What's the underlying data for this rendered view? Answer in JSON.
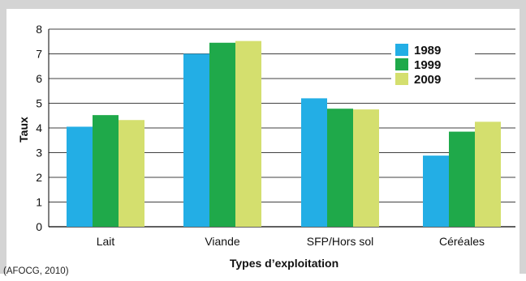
{
  "chart_data": {
    "type": "bar",
    "categories": [
      "Lait",
      "Viande",
      "SFP/Hors sol",
      "Céréales"
    ],
    "series": [
      {
        "name": "1989",
        "values": [
          4.05,
          7.0,
          5.2,
          2.88
        ],
        "color": "#23aee5"
      },
      {
        "name": "1999",
        "values": [
          4.52,
          7.45,
          4.78,
          3.85
        ],
        "color": "#1fa94a"
      },
      {
        "name": "2009",
        "values": [
          4.32,
          7.52,
          4.75,
          4.25
        ],
        "color": "#d4df6e"
      }
    ],
    "xlabel": "Types d’exploitation",
    "ylabel": "Taux",
    "ylim": [
      0,
      8
    ],
    "yticks": [
      "0",
      "1",
      "2",
      "3",
      "4",
      "5",
      "6",
      "7",
      "8"
    ],
    "grid": true,
    "legend_position": "top-right"
  },
  "source": "(AFOCG, 2010)"
}
